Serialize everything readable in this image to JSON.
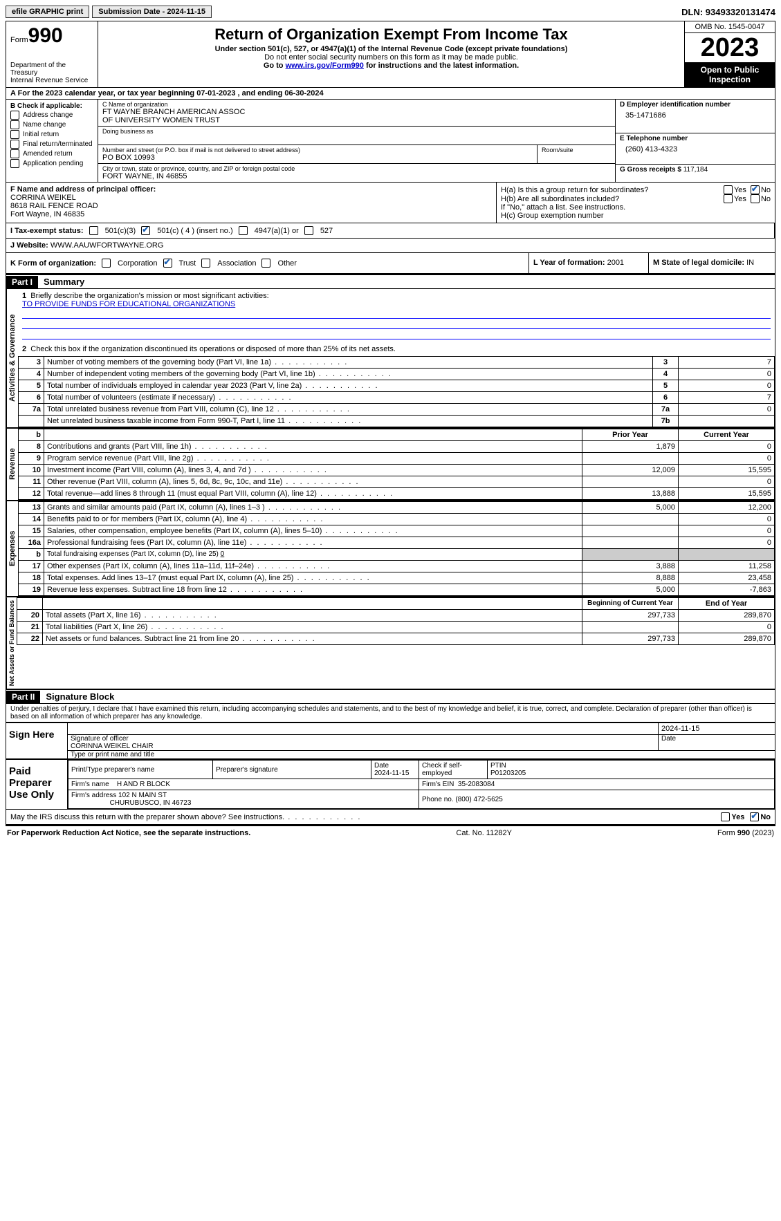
{
  "topbar": {
    "efile": "efile GRAPHIC print",
    "submission": "Submission Date - 2024-11-15",
    "dln": "DLN: 93493320131474"
  },
  "header": {
    "form_prefix": "Form",
    "form_no": "990",
    "title": "Return of Organization Exempt From Income Tax",
    "sub": "Under section 501(c), 527, or 4947(a)(1) of the Internal Revenue Code (except private foundations)",
    "note1": "Do not enter social security numbers on this form as it may be made public.",
    "note2_pre": "Go to ",
    "note2_link": "www.irs.gov/Form990",
    "note2_post": " for instructions and the latest information.",
    "dept": "Department of the Treasury\nInternal Revenue Service",
    "omb": "OMB No. 1545-0047",
    "year": "2023",
    "open": "Open to Public Inspection"
  },
  "rowA": "A For the 2023 calendar year, or tax year beginning 07-01-2023   , and ending 06-30-2024",
  "colB": {
    "title": "B Check if applicable:",
    "opts": [
      "Address change",
      "Name change",
      "Initial return",
      "Final return/terminated",
      "Amended return",
      "Application pending"
    ]
  },
  "colC": {
    "name_lbl": "C Name of organization",
    "name1": "FT WAYNE BRANCH AMERICAN ASSOC",
    "name2": "OF UNIVERSITY WOMEN TRUST",
    "dba_lbl": "Doing business as",
    "addr_lbl": "Number and street (or P.O. box if mail is not delivered to street address)",
    "addr": "PO BOX 10993",
    "room_lbl": "Room/suite",
    "city_lbl": "City or town, state or province, country, and ZIP or foreign postal code",
    "city": "FORT WAYNE, IN  46855"
  },
  "colD": {
    "d_lbl": "D Employer identification number",
    "d_val": "35-1471686",
    "e_lbl": "E Telephone number",
    "e_val": "(260) 413-4323",
    "g_lbl": "G Gross receipts $",
    "g_val": "117,184"
  },
  "rowF": {
    "f_lbl": "F  Name and address of principal officer:",
    "f_name": "CORRINA WEIKEL",
    "f_addr1": "8618 RAIL FENCE ROAD",
    "f_addr2": "Fort Wayne, IN  46835"
  },
  "rowH": {
    "ha": "H(a)  Is this a group return for subordinates?",
    "hb": "H(b)  Are all subordinates included?",
    "hb_note": "If \"No,\" attach a list. See instructions.",
    "hc": "H(c)  Group exemption number"
  },
  "rowI": {
    "i_lbl": "I   Tax-exempt status:",
    "opts": [
      "501(c)(3)",
      "501(c) ( 4 ) (insert no.)",
      "4947(a)(1) or",
      "527"
    ]
  },
  "rowJ": {
    "lbl": "J   Website:",
    "val": "WWW.AAUWFORTWAYNE.ORG"
  },
  "rowK": {
    "lbl": "K Form of organization:",
    "opts": [
      "Corporation",
      "Trust",
      "Association",
      "Other"
    ],
    "l_lbl": "L Year of formation:",
    "l_val": "2001",
    "m_lbl": "M State of legal domicile:",
    "m_val": "IN"
  },
  "part1": {
    "hdr": "Part I",
    "title": "Summary"
  },
  "section1": {
    "side": "Activities & Governance",
    "l1": "Briefly describe the organization's mission or most significant activities:",
    "l1v": "TO PROVIDE FUNDS FOR EDUCATIONAL ORGANIZATIONS",
    "l2": "Check this box        if the organization discontinued its operations or disposed of more than 25% of its net assets.",
    "rows": [
      {
        "n": "3",
        "t": "Number of voting members of the governing body (Part VI, line 1a)",
        "b": "3",
        "v": "7"
      },
      {
        "n": "4",
        "t": "Number of independent voting members of the governing body (Part VI, line 1b)",
        "b": "4",
        "v": "0"
      },
      {
        "n": "5",
        "t": "Total number of individuals employed in calendar year 2023 (Part V, line 2a)",
        "b": "5",
        "v": "0"
      },
      {
        "n": "6",
        "t": "Total number of volunteers (estimate if necessary)",
        "b": "6",
        "v": "7"
      },
      {
        "n": "7a",
        "t": "Total unrelated business revenue from Part VIII, column (C), line 12",
        "b": "7a",
        "v": "0"
      },
      {
        "n": "",
        "t": "Net unrelated business taxable income from Form 990-T, Part I, line 11",
        "b": "7b",
        "v": ""
      }
    ]
  },
  "section2": {
    "side": "Revenue",
    "hdr_b": "b",
    "hdr_prior": "Prior Year",
    "hdr_cur": "Current Year",
    "rows": [
      {
        "n": "8",
        "t": "Contributions and grants (Part VIII, line 1h)",
        "p": "1,879",
        "c": "0"
      },
      {
        "n": "9",
        "t": "Program service revenue (Part VIII, line 2g)",
        "p": "",
        "c": "0"
      },
      {
        "n": "10",
        "t": "Investment income (Part VIII, column (A), lines 3, 4, and 7d )",
        "p": "12,009",
        "c": "15,595"
      },
      {
        "n": "11",
        "t": "Other revenue (Part VIII, column (A), lines 5, 6d, 8c, 9c, 10c, and 11e)",
        "p": "",
        "c": "0"
      },
      {
        "n": "12",
        "t": "Total revenue—add lines 8 through 11 (must equal Part VIII, column (A), line 12)",
        "p": "13,888",
        "c": "15,595"
      }
    ]
  },
  "section3": {
    "side": "Expenses",
    "rows": [
      {
        "n": "13",
        "t": "Grants and similar amounts paid (Part IX, column (A), lines 1–3 )",
        "p": "5,000",
        "c": "12,200"
      },
      {
        "n": "14",
        "t": "Benefits paid to or for members (Part IX, column (A), line 4)",
        "p": "",
        "c": "0"
      },
      {
        "n": "15",
        "t": "Salaries, other compensation, employee benefits (Part IX, column (A), lines 5–10)",
        "p": "",
        "c": "0"
      },
      {
        "n": "16a",
        "t": "Professional fundraising fees (Part IX, column (A), line 11e)",
        "p": "",
        "c": "0"
      }
    ],
    "row_b": {
      "n": "b",
      "t": "Total fundraising expenses (Part IX, column (D), line 25)",
      "v": "0"
    },
    "rows2": [
      {
        "n": "17",
        "t": "Other expenses (Part IX, column (A), lines 11a–11d, 11f–24e)",
        "p": "3,888",
        "c": "11,258"
      },
      {
        "n": "18",
        "t": "Total expenses. Add lines 13–17 (must equal Part IX, column (A), line 25)",
        "p": "8,888",
        "c": "23,458"
      },
      {
        "n": "19",
        "t": "Revenue less expenses. Subtract line 18 from line 12",
        "p": "5,000",
        "c": "-7,863"
      }
    ]
  },
  "section4": {
    "side": "Net Assets or Fund Balances",
    "hdr_beg": "Beginning of Current Year",
    "hdr_end": "End of Year",
    "rows": [
      {
        "n": "20",
        "t": "Total assets (Part X, line 16)",
        "p": "297,733",
        "c": "289,870"
      },
      {
        "n": "21",
        "t": "Total liabilities (Part X, line 26)",
        "p": "",
        "c": "0"
      },
      {
        "n": "22",
        "t": "Net assets or fund balances. Subtract line 21 from line 20",
        "p": "297,733",
        "c": "289,870"
      }
    ]
  },
  "part2": {
    "hdr": "Part II",
    "title": "Signature Block",
    "decl": "Under penalties of perjury, I declare that I have examined this return, including accompanying schedules and statements, and to the best of my knowledge and belief, it is true, correct, and complete. Declaration of preparer (other than officer) is based on all information of which preparer has any knowledge."
  },
  "sign": {
    "left": "Sign Here",
    "date": "2024-11-15",
    "l1": "Signature of officer",
    "l1b": "Date",
    "l2": "CORINNA WEIKEL  CHAIR",
    "l3": "Type or print name and title"
  },
  "prep": {
    "left": "Paid Preparer Use Only",
    "h1": "Print/Type preparer's name",
    "h2": "Preparer's signature",
    "h3": "Date",
    "h3v": "2024-11-15",
    "h4": "Check         if self-employed",
    "h5": "PTIN",
    "h5v": "P01203205",
    "firm_lbl": "Firm's name",
    "firm": "H AND R BLOCK",
    "ein_lbl": "Firm's EIN",
    "ein": "35-2083084",
    "addr_lbl": "Firm's address",
    "addr1": "102 N MAIN ST",
    "addr2": "CHURUBUSCO, IN  46723",
    "phone_lbl": "Phone no.",
    "phone": "(800) 472-5625"
  },
  "discuss": "May the IRS discuss this return with the preparer shown above? See instructions.",
  "footer": {
    "left": "For Paperwork Reduction Act Notice, see the separate instructions.",
    "mid": "Cat. No. 11282Y",
    "right_pre": "Form ",
    "right_b": "990",
    "right_post": " (2023)"
  }
}
